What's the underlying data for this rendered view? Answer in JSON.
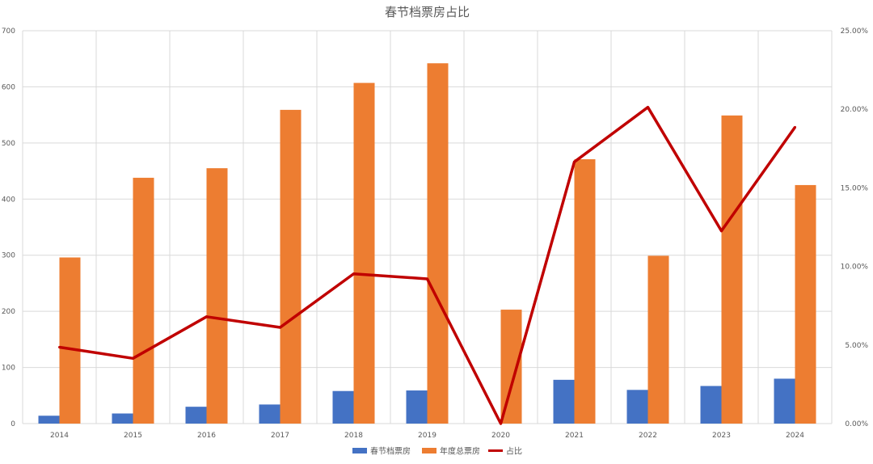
{
  "chart_data": {
    "type": "bar",
    "title": "春节档票房占比",
    "categories": [
      "2014",
      "2015",
      "2016",
      "2017",
      "2018",
      "2019",
      "2020",
      "2021",
      "2022",
      "2023",
      "2024"
    ],
    "series": [
      {
        "name": "春节档票房",
        "type": "bar",
        "axis": "left",
        "color": "#4472c4",
        "values": [
          14,
          18,
          30,
          34,
          58,
          59,
          0,
          78,
          60,
          67,
          80
        ]
      },
      {
        "name": "年度总票房",
        "type": "bar",
        "axis": "left",
        "color": "#ed7d31",
        "values": [
          296,
          438,
          455,
          559,
          607,
          642,
          203,
          471,
          299,
          549,
          425
        ]
      },
      {
        "name": "占比",
        "type": "line",
        "axis": "right",
        "color": "#c00000",
        "values": [
          0.0486,
          0.0415,
          0.068,
          0.0612,
          0.0953,
          0.0921,
          0.0,
          0.1665,
          0.2013,
          0.1226,
          0.1886
        ]
      }
    ],
    "ylim": [
      0,
      700
    ],
    "yticks": [
      "0",
      "100",
      "200",
      "300",
      "400",
      "500",
      "600",
      "700"
    ],
    "y2lim": [
      0,
      0.25
    ],
    "y2ticks": [
      "0.00%",
      "5.00%",
      "10.00%",
      "15.00%",
      "20.00%",
      "25.00%"
    ],
    "xlabel": "",
    "ylabel": "",
    "grid": true,
    "legend": "bottom"
  }
}
